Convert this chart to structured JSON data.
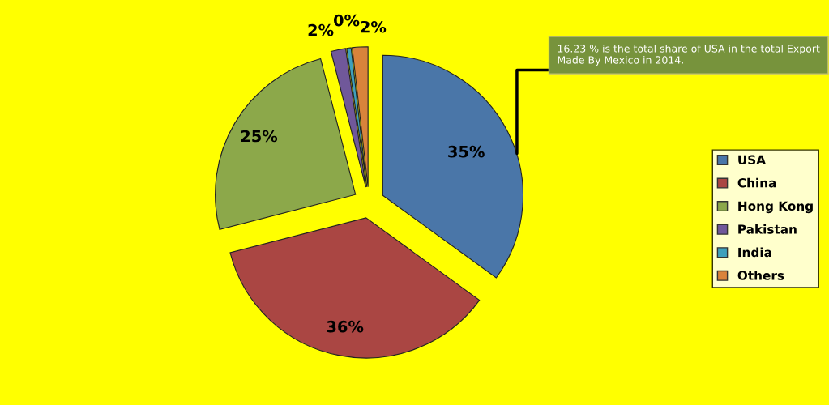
{
  "chart_data": {
    "type": "pie",
    "categories": [
      "USA",
      "China",
      "Hong Kong",
      "Pakistan",
      "India",
      "Others"
    ],
    "values": [
      35,
      36,
      25,
      1.7,
      0.5,
      1.8
    ],
    "value_labels": [
      "35%",
      "36%",
      "25%",
      "2%",
      "0%",
      "2%"
    ],
    "colors": [
      "#4a76a8",
      "#aa4643",
      "#8ca84a",
      "#70589a",
      "#3fa0bc",
      "#d9833b"
    ],
    "legend": "right",
    "annotations": [
      {
        "text": "16.23 % is the total share of USA in the total Export Made By Mexico in 2014."
      }
    ]
  }
}
